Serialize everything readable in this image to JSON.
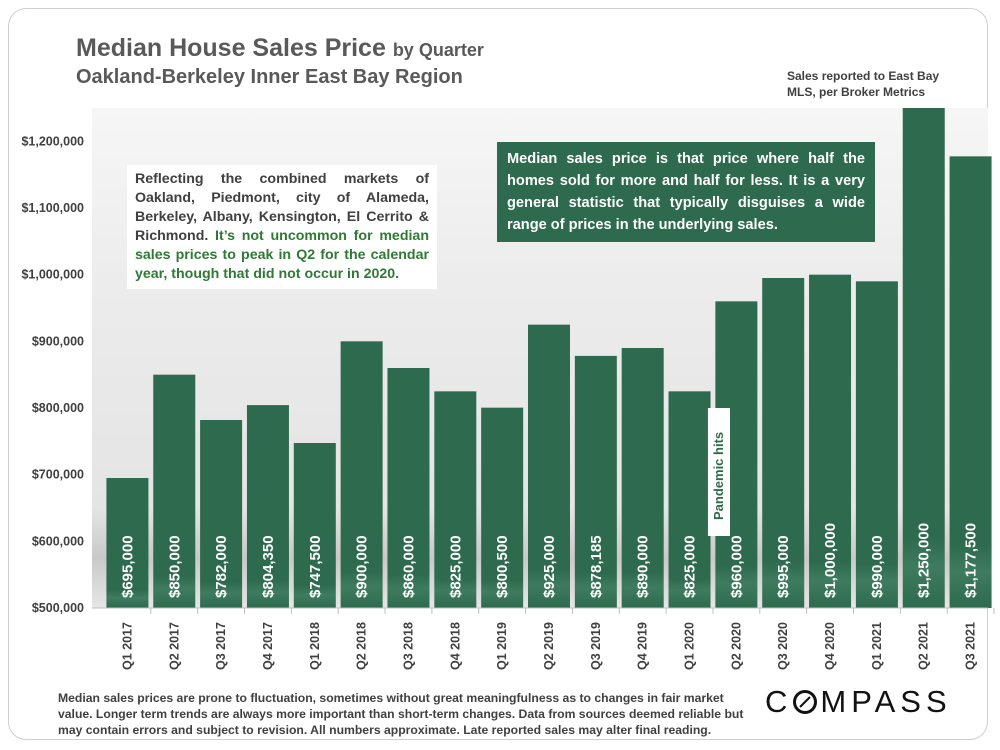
{
  "chart_data": {
    "type": "bar",
    "title": "Median House Sales Price",
    "title_suffix": "by Quarter",
    "subtitle": "Oakland-Berkeley Inner East Bay Region",
    "source_note": "Sales reported to East Bay MLS, per Broker Metrics",
    "xlabel": "",
    "ylabel": "",
    "ylim": [
      500000,
      1250000
    ],
    "yticks": [
      500000,
      600000,
      700000,
      800000,
      900000,
      1000000,
      1100000,
      1200000
    ],
    "ytick_labels": [
      "$500,000",
      "$600,000",
      "$700,000",
      "$800,000",
      "$900,000",
      "$1,000,000",
      "$1,100,000",
      "$1,200,000"
    ],
    "categories": [
      "Q1 2017",
      "Q2 2017",
      "Q3 2017",
      "Q4 2017",
      "Q1 2018",
      "Q2 2018",
      "Q3 2018",
      "Q4 2018",
      "Q1 2019",
      "Q2 2019",
      "Q3 2019",
      "Q4 2019",
      "Q1 2020",
      "Q2 2020",
      "Q3 2020",
      "Q4 2020",
      "Q1 2021",
      "Q2 2021",
      "Q3 2021"
    ],
    "values": [
      695000,
      850000,
      782000,
      804350,
      747500,
      900000,
      860000,
      825000,
      800500,
      925000,
      878185,
      890000,
      825000,
      960000,
      995000,
      1000000,
      990000,
      1250000,
      1177500
    ],
    "value_labels": [
      "$695,000",
      "$850,000",
      "$782,000",
      "$804,350",
      "$747,500",
      "$900,000",
      "$860,000",
      "$825,000",
      "$800,500",
      "$925,000",
      "$878,185",
      "$890,000",
      "$825,000",
      "$960,000",
      "$995,000",
      "$1,000,000",
      "$990,000",
      "$1,250,000",
      "$1,177,500"
    ],
    "bar_color": "#2e6a4e",
    "annotation": {
      "text": "Pandemic hits",
      "after_category": "Q1 2020"
    }
  },
  "left_note": {
    "plain": "Reflecting the combined markets of Oakland, Piedmont, city of Alameda, Berkeley, Albany, Kensington, El Cerrito & Richmond. ",
    "highlight": "It’s not uncommon for median sales prices to peak in Q2 for the calendar year, though that did not occur in 2020."
  },
  "definition_box": "Median sales price is that price where half the homes sold for more and half for less. It is a very general statistic that typically disguises a wide range of prices in the underlying sales.",
  "footer_disclaimer": "Median sales prices are prone to fluctuation, sometimes without great meaningfulness as to changes in fair market value. Longer term trends are always more important than short-term changes. Data from sources deemed reliable but may contain errors and subject to revision. All numbers approximate. Late reported sales may alter final reading.",
  "logo": {
    "text_before": "C",
    "text_after": "MPASS"
  },
  "colors": {
    "accent_green": "#2e7a34",
    "plot_background": "#e9e9e9",
    "title_gray": "#595959"
  }
}
